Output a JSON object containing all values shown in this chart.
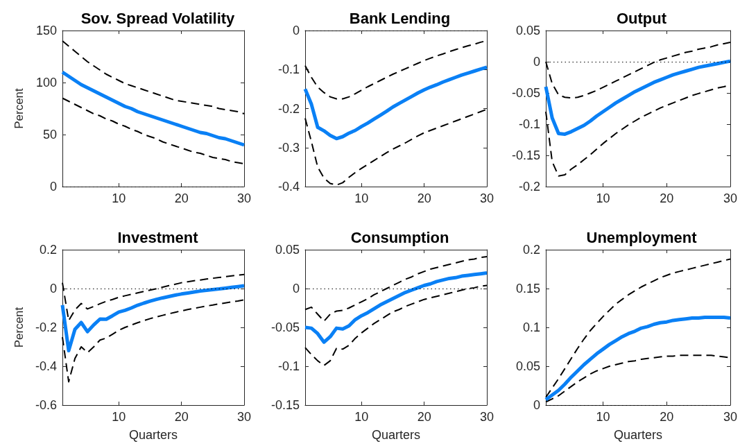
{
  "chart_data": [
    {
      "type": "line",
      "title": "Sov. Spread Volatility",
      "ylabel": "Percent",
      "x": [
        1,
        2,
        3,
        4,
        5,
        6,
        7,
        8,
        9,
        10,
        11,
        12,
        13,
        14,
        15,
        16,
        17,
        18,
        19,
        20,
        21,
        22,
        23,
        24,
        25,
        26,
        27,
        28,
        29,
        30
      ],
      "xlim": [
        1,
        30
      ],
      "xticks": [
        10,
        20,
        30
      ],
      "ylim": [
        0,
        150
      ],
      "yticks": [
        0,
        50,
        100,
        150
      ],
      "marker": "none",
      "ref_lines": [
        {
          "axis": "y",
          "value": 0,
          "color": "#000000",
          "line_style": "dotted"
        }
      ],
      "series": [
        {
          "color": "#000000",
          "line_style": "dashed",
          "values": [
            140,
            135,
            130,
            125,
            120,
            116,
            112,
            108,
            105,
            102,
            99,
            97,
            95,
            93,
            91,
            89,
            87,
            85,
            83,
            82,
            81,
            80,
            79,
            78,
            77,
            75,
            74,
            73,
            72,
            70
          ]
        },
        {
          "color": "#000000",
          "line_style": "dashed",
          "values": [
            85,
            82,
            79,
            76,
            73,
            70,
            68,
            65,
            63,
            60,
            58,
            55,
            53,
            50,
            48,
            46,
            43,
            41,
            39,
            37,
            35,
            33,
            32,
            30,
            28,
            27,
            26,
            24,
            23,
            22
          ]
        },
        {
          "color": "#0a80f5",
          "line_style": "solid",
          "values": [
            110,
            106,
            102,
            98,
            95,
            92,
            89,
            86,
            83,
            80,
            77,
            75,
            72,
            70,
            68,
            66,
            64,
            62,
            60,
            58,
            56,
            54,
            52,
            51,
            49,
            47,
            46,
            44,
            42,
            40
          ]
        }
      ]
    },
    {
      "type": "line",
      "title": "Bank Lending",
      "x": [
        1,
        2,
        3,
        4,
        5,
        6,
        7,
        8,
        9,
        10,
        11,
        12,
        13,
        14,
        15,
        16,
        17,
        18,
        19,
        20,
        21,
        22,
        23,
        24,
        25,
        26,
        27,
        28,
        29,
        30
      ],
      "xlim": [
        1,
        30
      ],
      "xticks": [
        10,
        20,
        30
      ],
      "ylim": [
        -0.4,
        0
      ],
      "yticks": [
        -0.4,
        -0.3,
        -0.2,
        -0.1,
        0
      ],
      "marker": "none",
      "ref_lines": [
        {
          "axis": "y",
          "value": 0,
          "color": "#000000",
          "line_style": "dotted"
        }
      ],
      "series": [
        {
          "color": "#000000",
          "line_style": "dashed",
          "values": [
            -0.09,
            -0.12,
            -0.145,
            -0.159,
            -0.17,
            -0.175,
            -0.175,
            -0.17,
            -0.162,
            -0.153,
            -0.144,
            -0.136,
            -0.128,
            -0.12,
            -0.112,
            -0.105,
            -0.098,
            -0.091,
            -0.084,
            -0.077,
            -0.071,
            -0.065,
            -0.06,
            -0.054,
            -0.049,
            -0.044,
            -0.039,
            -0.035,
            -0.03,
            -0.026
          ]
        },
        {
          "color": "#000000",
          "line_style": "dashed",
          "values": [
            -0.225,
            -0.285,
            -0.35,
            -0.378,
            -0.392,
            -0.396,
            -0.39,
            -0.376,
            -0.364,
            -0.353,
            -0.343,
            -0.333,
            -0.323,
            -0.313,
            -0.304,
            -0.296,
            -0.288,
            -0.279,
            -0.27,
            -0.262,
            -0.256,
            -0.25,
            -0.244,
            -0.238,
            -0.232,
            -0.226,
            -0.22,
            -0.214,
            -0.208,
            -0.202
          ]
        },
        {
          "color": "#0a80f5",
          "line_style": "solid",
          "values": [
            -0.15,
            -0.189,
            -0.248,
            -0.257,
            -0.269,
            -0.277,
            -0.272,
            -0.263,
            -0.256,
            -0.246,
            -0.237,
            -0.227,
            -0.217,
            -0.207,
            -0.196,
            -0.187,
            -0.178,
            -0.169,
            -0.16,
            -0.152,
            -0.145,
            -0.139,
            -0.132,
            -0.126,
            -0.12,
            -0.114,
            -0.109,
            -0.104,
            -0.099,
            -0.094
          ]
        }
      ]
    },
    {
      "type": "line",
      "title": "Output",
      "x": [
        1,
        2,
        3,
        4,
        5,
        6,
        7,
        8,
        9,
        10,
        11,
        12,
        13,
        14,
        15,
        16,
        17,
        18,
        19,
        20,
        21,
        22,
        23,
        24,
        25,
        26,
        27,
        28,
        29,
        30
      ],
      "xlim": [
        1,
        30
      ],
      "xticks": [
        10,
        20,
        30
      ],
      "ylim": [
        -0.2,
        0.05
      ],
      "yticks": [
        -0.2,
        -0.15,
        -0.1,
        -0.05,
        0,
        0.05
      ],
      "marker": "none",
      "ref_lines": [
        {
          "axis": "y",
          "value": 0,
          "color": "#000000",
          "line_style": "dotted"
        }
      ],
      "series": [
        {
          "color": "#000000",
          "line_style": "dashed",
          "values": [
            0,
            -0.035,
            -0.053,
            -0.057,
            -0.058,
            -0.057,
            -0.054,
            -0.05,
            -0.046,
            -0.041,
            -0.036,
            -0.031,
            -0.026,
            -0.021,
            -0.016,
            -0.011,
            -0.006,
            -0.001,
            0.003,
            0.006,
            0.009,
            0.012,
            0.015,
            0.017,
            0.02,
            0.022,
            0.024,
            0.027,
            0.029,
            0.031
          ]
        },
        {
          "color": "#000000",
          "line_style": "dashed",
          "values": [
            -0.08,
            -0.16,
            -0.183,
            -0.181,
            -0.172,
            -0.165,
            -0.157,
            -0.149,
            -0.14,
            -0.131,
            -0.123,
            -0.115,
            -0.108,
            -0.101,
            -0.095,
            -0.089,
            -0.084,
            -0.079,
            -0.074,
            -0.07,
            -0.066,
            -0.062,
            -0.058,
            -0.054,
            -0.051,
            -0.048,
            -0.045,
            -0.042,
            -0.04,
            -0.037
          ]
        },
        {
          "color": "#0a80f5",
          "line_style": "solid",
          "values": [
            -0.04,
            -0.09,
            -0.115,
            -0.116,
            -0.112,
            -0.107,
            -0.102,
            -0.095,
            -0.087,
            -0.08,
            -0.073,
            -0.066,
            -0.06,
            -0.054,
            -0.048,
            -0.043,
            -0.038,
            -0.033,
            -0.029,
            -0.025,
            -0.021,
            -0.018,
            -0.015,
            -0.012,
            -0.009,
            -0.007,
            -0.005,
            -0.003,
            -0.001,
            0.001
          ]
        }
      ]
    },
    {
      "type": "line",
      "title": "Investment",
      "ylabel": "Percent",
      "xlabel": "Quarters",
      "x": [
        1,
        2,
        3,
        4,
        5,
        6,
        7,
        8,
        9,
        10,
        11,
        12,
        13,
        14,
        15,
        16,
        17,
        18,
        19,
        20,
        21,
        22,
        23,
        24,
        25,
        26,
        27,
        28,
        29,
        30
      ],
      "xlim": [
        1,
        30
      ],
      "xticks": [
        10,
        20,
        30
      ],
      "ylim": [
        -0.6,
        0.2
      ],
      "yticks": [
        -0.6,
        -0.4,
        -0.2,
        0,
        0.2
      ],
      "marker": "none",
      "ref_lines": [
        {
          "axis": "y",
          "value": 0,
          "color": "#000000",
          "line_style": "dotted"
        }
      ],
      "series": [
        {
          "color": "#000000",
          "line_style": "dashed",
          "values": [
            0.03,
            -0.165,
            -0.11,
            -0.077,
            -0.105,
            -0.092,
            -0.078,
            -0.066,
            -0.056,
            -0.045,
            -0.037,
            -0.03,
            -0.022,
            -0.015,
            -0.008,
            -0.001,
            0.007,
            0.015,
            0.022,
            0.03,
            0.035,
            0.04,
            0.044,
            0.049,
            0.053,
            0.057,
            0.061,
            0.065,
            0.069,
            0.072
          ]
        },
        {
          "color": "#000000",
          "line_style": "dashed",
          "values": [
            -0.25,
            -0.48,
            -0.36,
            -0.3,
            -0.33,
            -0.3,
            -0.265,
            -0.255,
            -0.235,
            -0.215,
            -0.2,
            -0.188,
            -0.176,
            -0.165,
            -0.155,
            -0.146,
            -0.138,
            -0.13,
            -0.122,
            -0.115,
            -0.108,
            -0.102,
            -0.096,
            -0.09,
            -0.085,
            -0.079,
            -0.074,
            -0.069,
            -0.064,
            -0.058
          ]
        },
        {
          "color": "#0a80f5",
          "line_style": "solid",
          "values": [
            -0.085,
            -0.32,
            -0.21,
            -0.175,
            -0.222,
            -0.187,
            -0.157,
            -0.158,
            -0.14,
            -0.121,
            -0.112,
            -0.1,
            -0.086,
            -0.075,
            -0.065,
            -0.056,
            -0.048,
            -0.041,
            -0.034,
            -0.028,
            -0.023,
            -0.018,
            -0.013,
            -0.009,
            -0.005,
            -0.002,
            0.002,
            0.006,
            0.01,
            0.014
          ]
        }
      ]
    },
    {
      "type": "line",
      "title": "Consumption",
      "xlabel": "Quarters",
      "x": [
        1,
        2,
        3,
        4,
        5,
        6,
        7,
        8,
        9,
        10,
        11,
        12,
        13,
        14,
        15,
        16,
        17,
        18,
        19,
        20,
        21,
        22,
        23,
        24,
        25,
        26,
        27,
        28,
        29,
        30
      ],
      "xlim": [
        1,
        30
      ],
      "xticks": [
        10,
        20,
        30
      ],
      "ylim": [
        -0.15,
        0.05
      ],
      "yticks": [
        -0.15,
        -0.1,
        -0.05,
        0,
        0.05
      ],
      "marker": "none",
      "ref_lines": [
        {
          "axis": "y",
          "value": 0,
          "color": "#000000",
          "line_style": "dotted"
        }
      ],
      "series": [
        {
          "color": "#000000",
          "line_style": "dashed",
          "values": [
            -0.027,
            -0.024,
            -0.033,
            -0.042,
            -0.033,
            -0.029,
            -0.028,
            -0.025,
            -0.021,
            -0.017,
            -0.013,
            -0.008,
            -0.004,
            0,
            0.004,
            0.008,
            0.012,
            0.015,
            0.019,
            0.022,
            0.025,
            0.027,
            0.029,
            0.031,
            0.033,
            0.035,
            0.037,
            0.038,
            0.04,
            0.041
          ]
        },
        {
          "color": "#000000",
          "line_style": "dashed",
          "values": [
            -0.076,
            -0.085,
            -0.093,
            -0.099,
            -0.093,
            -0.077,
            -0.078,
            -0.073,
            -0.064,
            -0.057,
            -0.051,
            -0.045,
            -0.04,
            -0.035,
            -0.03,
            -0.027,
            -0.023,
            -0.02,
            -0.017,
            -0.014,
            -0.012,
            -0.01,
            -0.008,
            -0.006,
            -0.004,
            -0.002,
            0,
            0.001,
            0.003,
            0.004
          ]
        },
        {
          "color": "#0a80f5",
          "line_style": "solid",
          "values": [
            -0.05,
            -0.051,
            -0.058,
            -0.069,
            -0.062,
            -0.051,
            -0.052,
            -0.048,
            -0.04,
            -0.035,
            -0.031,
            -0.026,
            -0.021,
            -0.017,
            -0.013,
            -0.009,
            -0.005,
            -0.002,
            0.001,
            0.004,
            0.006,
            0.009,
            0.011,
            0.013,
            0.014,
            0.016,
            0.017,
            0.018,
            0.019,
            0.02
          ]
        }
      ]
    },
    {
      "type": "line",
      "title": "Unemployment",
      "xlabel": "Quarters",
      "x": [
        1,
        2,
        3,
        4,
        5,
        6,
        7,
        8,
        9,
        10,
        11,
        12,
        13,
        14,
        15,
        16,
        17,
        18,
        19,
        20,
        21,
        22,
        23,
        24,
        25,
        26,
        27,
        28,
        29,
        30
      ],
      "xlim": [
        1,
        30
      ],
      "xticks": [
        10,
        20,
        30
      ],
      "ylim": [
        0,
        0.2
      ],
      "yticks": [
        0,
        0.05,
        0.1,
        0.15,
        0.2
      ],
      "marker": "none",
      "ref_lines": [
        {
          "axis": "y",
          "value": 0,
          "color": "#000000",
          "line_style": "dotted"
        }
      ],
      "series": [
        {
          "color": "#000000",
          "line_style": "dashed",
          "values": [
            0.01,
            0.022,
            0.034,
            0.047,
            0.06,
            0.073,
            0.085,
            0.096,
            0.105,
            0.114,
            0.122,
            0.13,
            0.136,
            0.142,
            0.147,
            0.152,
            0.156,
            0.16,
            0.164,
            0.167,
            0.17,
            0.172,
            0.174,
            0.176,
            0.178,
            0.18,
            0.182,
            0.184,
            0.186,
            0.188
          ]
        },
        {
          "color": "#000000",
          "line_style": "dashed",
          "values": [
            0.004,
            0.008,
            0.012,
            0.018,
            0.024,
            0.03,
            0.035,
            0.04,
            0.044,
            0.047,
            0.05,
            0.052,
            0.054,
            0.056,
            0.057,
            0.059,
            0.06,
            0.061,
            0.062,
            0.063,
            0.063,
            0.064,
            0.064,
            0.064,
            0.064,
            0.064,
            0.064,
            0.063,
            0.062,
            0.061
          ]
        },
        {
          "color": "#0a80f5",
          "line_style": "solid",
          "values": [
            0.007,
            0.013,
            0.019,
            0.027,
            0.036,
            0.044,
            0.052,
            0.059,
            0.066,
            0.072,
            0.078,
            0.083,
            0.088,
            0.092,
            0.095,
            0.099,
            0.101,
            0.104,
            0.106,
            0.107,
            0.109,
            0.11,
            0.111,
            0.112,
            0.112,
            0.113,
            0.113,
            0.113,
            0.113,
            0.112
          ]
        }
      ]
    }
  ]
}
